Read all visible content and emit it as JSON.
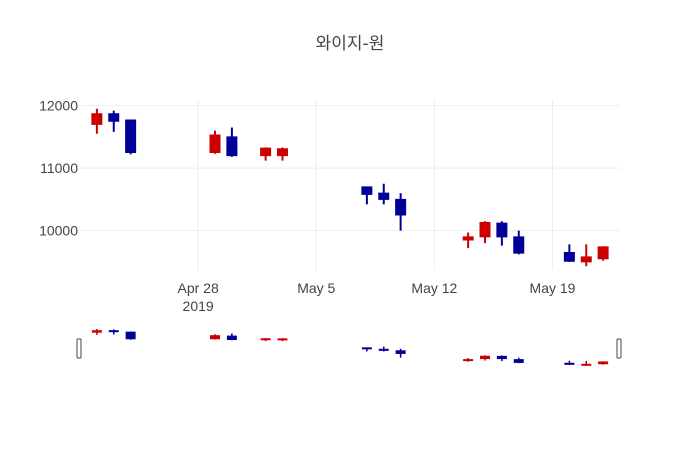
{
  "chart_data": {
    "type": "candlestick",
    "title": "와이지-원",
    "xlabel": "",
    "ylabel": "",
    "ylim": [
      9370,
      12090
    ],
    "xlim": [
      "2019-04-21",
      "2019-05-23"
    ],
    "y_ticks": [
      10000,
      11000,
      12000
    ],
    "y_tick_labels": [
      "10000",
      "11000",
      "12000"
    ],
    "x_ticks": [
      "2019-04-28",
      "2019-05-05",
      "2019-05-12",
      "2019-05-19"
    ],
    "x_tick_labels": [
      "Apr 28",
      "May 5",
      "May 12",
      "May 19"
    ],
    "x_tick_year_label": "2019",
    "colors": {
      "increasing": "#cc0000",
      "decreasing": "#000099"
    },
    "grid": true,
    "legend": "none",
    "rangeslider": true,
    "candles": [
      {
        "date": "2019-04-22",
        "open": 11700,
        "high": 11950,
        "low": 11550,
        "close": 11870,
        "dir": "up"
      },
      {
        "date": "2019-04-23",
        "open": 11870,
        "high": 11920,
        "low": 11580,
        "close": 11750,
        "dir": "down"
      },
      {
        "date": "2019-04-24",
        "open": 11770,
        "high": 11770,
        "low": 11220,
        "close": 11250,
        "dir": "down"
      },
      {
        "date": "2019-04-29",
        "open": 11250,
        "high": 11600,
        "low": 11230,
        "close": 11530,
        "dir": "up"
      },
      {
        "date": "2019-04-30",
        "open": 11500,
        "high": 11650,
        "low": 11180,
        "close": 11200,
        "dir": "down"
      },
      {
        "date": "2019-05-02",
        "open": 11200,
        "high": 11330,
        "low": 11120,
        "close": 11320,
        "dir": "up"
      },
      {
        "date": "2019-05-03",
        "open": 11200,
        "high": 11330,
        "low": 11120,
        "close": 11310,
        "dir": "up"
      },
      {
        "date": "2019-05-08",
        "open": 10700,
        "high": 10700,
        "low": 10420,
        "close": 10580,
        "dir": "down"
      },
      {
        "date": "2019-05-09",
        "open": 10600,
        "high": 10750,
        "low": 10420,
        "close": 10500,
        "dir": "down"
      },
      {
        "date": "2019-05-10",
        "open": 10500,
        "high": 10600,
        "low": 10000,
        "close": 10250,
        "dir": "down"
      },
      {
        "date": "2019-05-14",
        "open": 9850,
        "high": 9970,
        "low": 9720,
        "close": 9900,
        "dir": "up"
      },
      {
        "date": "2019-05-15",
        "open": 9900,
        "high": 10150,
        "low": 9800,
        "close": 10130,
        "dir": "up"
      },
      {
        "date": "2019-05-16",
        "open": 10120,
        "high": 10150,
        "low": 9760,
        "close": 9900,
        "dir": "down"
      },
      {
        "date": "2019-05-17",
        "open": 9900,
        "high": 10000,
        "low": 9620,
        "close": 9640,
        "dir": "down"
      },
      {
        "date": "2019-05-20",
        "open": 9650,
        "high": 9780,
        "low": 9500,
        "close": 9510,
        "dir": "down"
      },
      {
        "date": "2019-05-21",
        "open": 9500,
        "high": 9780,
        "low": 9430,
        "close": 9580,
        "dir": "up"
      },
      {
        "date": "2019-05-22",
        "open": 9550,
        "high": 9750,
        "low": 9520,
        "close": 9740,
        "dir": "up"
      }
    ]
  }
}
